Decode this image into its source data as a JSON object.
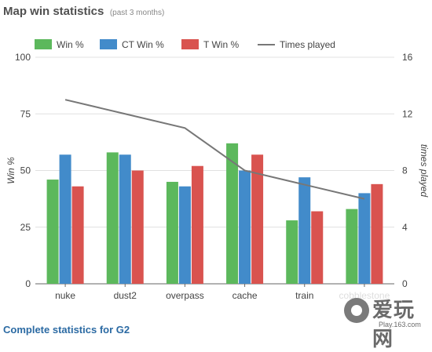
{
  "header": {
    "title": "Map win statistics",
    "subtitle": "(past 3 months)"
  },
  "footer": {
    "link_label": "Complete statistics for G2"
  },
  "watermark": {
    "logo_text": "爱玩网",
    "url": "Play.163.com"
  },
  "colors": {
    "win": "#5cb85c",
    "ct": "#428bca",
    "t": "#d9534f",
    "times": "#777777"
  },
  "chart_data": {
    "type": "bar",
    "categories": [
      "nuke",
      "dust2",
      "overpass",
      "cache",
      "train",
      "cobblestone"
    ],
    "series": [
      {
        "name": "Win %",
        "values": [
          46,
          58,
          45,
          62,
          28,
          33
        ],
        "color": "#5cb85c",
        "axis": "left"
      },
      {
        "name": "CT Win %",
        "values": [
          57,
          57,
          43,
          50,
          47,
          40
        ],
        "color": "#428bca",
        "axis": "left"
      },
      {
        "name": "T Win %",
        "values": [
          43,
          50,
          52,
          57,
          32,
          44
        ],
        "color": "#d9534f",
        "axis": "left"
      }
    ],
    "line_series": {
      "name": "Times played",
      "values": [
        13,
        12,
        11,
        8,
        7,
        6
      ],
      "color": "#777777",
      "axis": "right"
    },
    "ylabel": "Win %",
    "y2label": "times played",
    "ylim": [
      0,
      100
    ],
    "y2lim": [
      0,
      16
    ],
    "yticks": [
      "0",
      "25",
      "50",
      "75",
      "100"
    ],
    "y2ticks": [
      "0",
      "4",
      "8",
      "12",
      "16"
    ],
    "grid": true,
    "legend": "top"
  }
}
